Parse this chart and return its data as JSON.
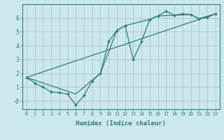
{
  "xlabel": "Humidex (Indice chaleur)",
  "background_color": "#cde8ec",
  "grid_color": "#aacccc",
  "line_color": "#2e7d72",
  "xlim": [
    -0.5,
    23.5
  ],
  "ylim": [
    -0.6,
    7.0
  ],
  "xticks": [
    0,
    1,
    2,
    3,
    4,
    5,
    6,
    7,
    8,
    9,
    10,
    11,
    12,
    13,
    14,
    15,
    16,
    17,
    18,
    19,
    20,
    21,
    22,
    23
  ],
  "yticks": [
    0,
    1,
    2,
    3,
    4,
    5,
    6
  ],
  "ytick_labels": [
    "-0",
    "1",
    "2",
    "3",
    "4",
    "5",
    "6"
  ],
  "line1_x": [
    0,
    1,
    2,
    3,
    4,
    5,
    6,
    7,
    8,
    9,
    10,
    11,
    12,
    13,
    14,
    15,
    16,
    17,
    18,
    19,
    20,
    21,
    22,
    23
  ],
  "line1_y": [
    1.7,
    1.3,
    1.0,
    0.65,
    0.6,
    0.5,
    -0.3,
    0.4,
    1.45,
    2.0,
    4.3,
    5.1,
    5.45,
    3.0,
    4.3,
    5.9,
    6.15,
    6.5,
    6.2,
    6.3,
    6.25,
    5.95,
    6.05,
    6.3
  ],
  "line2_x": [
    0,
    23
  ],
  "line2_y": [
    1.7,
    6.3
  ],
  "line3_x": [
    0,
    6,
    9,
    11,
    12,
    15,
    16,
    18,
    20,
    21,
    23
  ],
  "line3_y": [
    1.7,
    0.5,
    2.0,
    5.1,
    5.45,
    5.9,
    6.15,
    6.2,
    6.25,
    5.95,
    6.3
  ]
}
